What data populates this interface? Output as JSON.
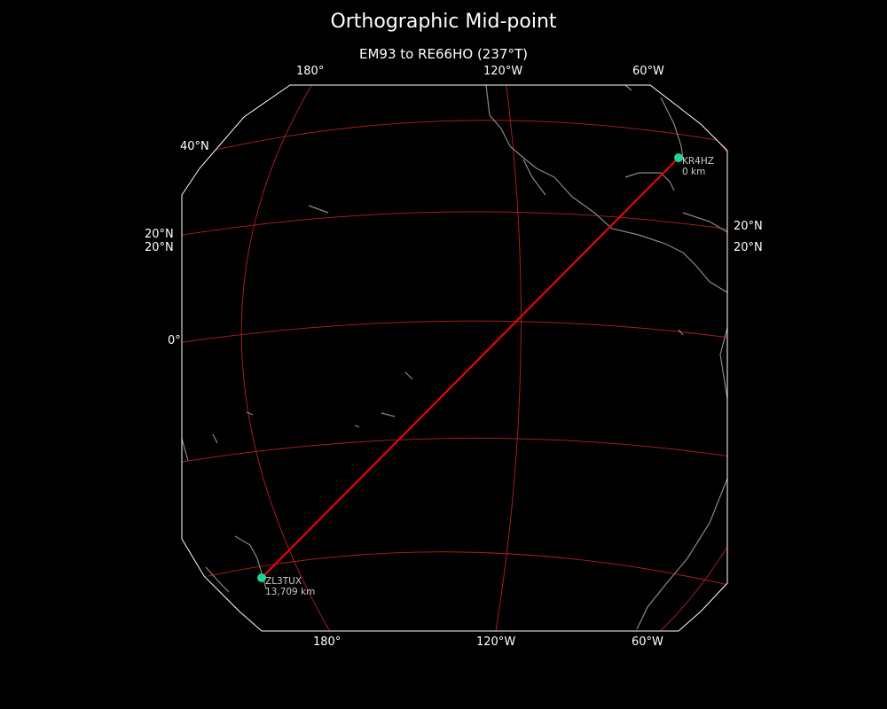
{
  "title": "Orthographic Mid-point",
  "subtitle": "EM93 to RE66HO (237°T)",
  "projection": "orthographic",
  "colors": {
    "background": "#000000",
    "path": "#ff0000",
    "graticule": "#b22222",
    "coastline": "#888888",
    "station": "#1fd3a0",
    "frame": "#ffffff"
  },
  "graticule_labels": {
    "top": [
      "180°",
      "120°W",
      "60°W"
    ],
    "bottom": [
      "180°",
      "120°W",
      "60°W"
    ],
    "left": [
      "40°N",
      "20°N",
      "20°N",
      "0°"
    ],
    "right": [
      "20°N",
      "20°N"
    ]
  },
  "stations": [
    {
      "call": "KR4HZ",
      "distance": "0 km",
      "lat": 33.5,
      "lon": -82.0
    },
    {
      "call": "ZL3TUX",
      "distance": "13,709 km",
      "lat": -43.5,
      "lon": 172.5
    }
  ]
}
